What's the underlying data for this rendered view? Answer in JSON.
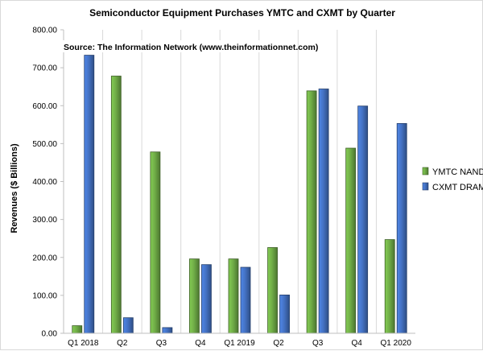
{
  "chart_data": {
    "type": "bar",
    "title": "Semiconductor Equipment Purchases YMTC and CXMT by Quarter",
    "annotation": "Source: The Information Network (www.theinformationnet.com)",
    "xlabel": "",
    "ylabel": "Revenues ($ Billions)",
    "categories": [
      "Q1 2018",
      "Q2",
      "Q3",
      "Q4",
      "Q1 2019",
      "Q2",
      "Q3",
      "Q4",
      "Q1 2020"
    ],
    "series": [
      {
        "name": "YMTC NAND",
        "color": "#70ad47",
        "values": [
          20,
          678,
          478,
          196,
          196,
          226,
          639,
          488,
          247
        ]
      },
      {
        "name": "CXMT DRAM",
        "color": "#4472c4",
        "values": [
          733,
          41,
          15,
          181,
          174,
          101,
          644,
          599,
          553
        ]
      }
    ],
    "ylim": [
      0,
      800
    ],
    "yticks": [
      "0.00",
      "100.00",
      "200.00",
      "300.00",
      "400.00",
      "500.00",
      "600.00",
      "700.00",
      "800.00"
    ],
    "grid": "vertical",
    "legend_position": "right"
  }
}
